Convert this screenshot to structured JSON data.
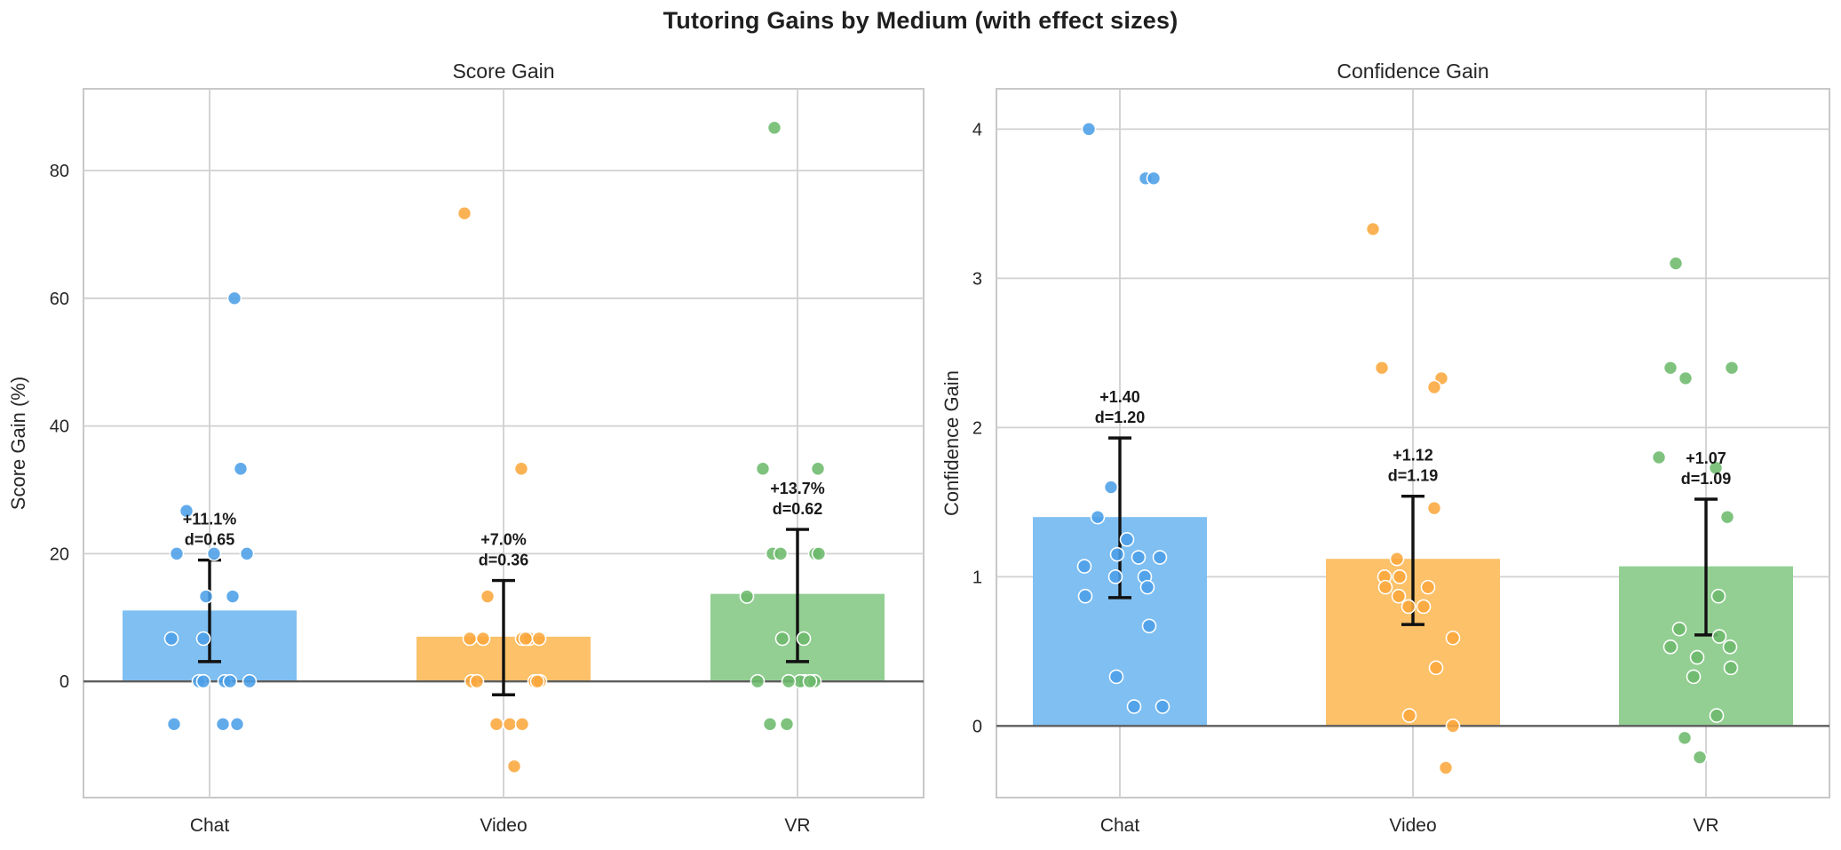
{
  "figure_title": "Tutoring Gains by Medium (with effect sizes)",
  "colors": {
    "background": "#ffffff",
    "panel_border": "#c8c8c8",
    "gridline": "#d0d0d0",
    "zero_line": "#5e5e5e",
    "errorbar": "#111111",
    "text": "#262626",
    "annotation_text": "#1a1a1a",
    "series": [
      {
        "name": "Chat",
        "point": "#4C9FE8",
        "bar": "#7FBFF2"
      },
      {
        "name": "Video",
        "point": "#FAA73C",
        "bar": "#FCC169"
      },
      {
        "name": "VR",
        "point": "#6CBA6C",
        "bar": "#93CF93"
      }
    ]
  },
  "chart_data": [
    {
      "type": "bar",
      "title": "Score Gain",
      "ylabel": "Score Gain (%)",
      "categories": [
        "Chat",
        "Video",
        "VR"
      ],
      "ytick_labels": [
        "0",
        "20",
        "40",
        "60",
        "80"
      ],
      "ytick_values": [
        0,
        20,
        40,
        60,
        80
      ],
      "ylim": [
        -18.2,
        92.8
      ],
      "grid": true,
      "legend": "none",
      "groups": [
        {
          "category": "Chat",
          "bar_mean": 11.1,
          "mean_label": "+11.1%",
          "d_label": "d=0.65",
          "effect_size": 0.65,
          "ci": [
            3.1,
            19.0
          ],
          "points": [
            [
              28,
              60
            ],
            [
              35,
              33.3
            ],
            [
              -26,
              26.7
            ],
            [
              -37,
              20
            ],
            [
              5,
              20
            ],
            [
              42,
              20
            ],
            [
              -4,
              13.3
            ],
            [
              26,
              13.3
            ],
            [
              -43,
              6.7
            ],
            [
              -7,
              6.7
            ],
            [
              -12,
              0
            ],
            [
              -7,
              0
            ],
            [
              17,
              0
            ],
            [
              23,
              0
            ],
            [
              45,
              0
            ],
            [
              -40,
              -6.7
            ],
            [
              15,
              -6.7
            ],
            [
              31,
              -6.7
            ]
          ]
        },
        {
          "category": "Video",
          "bar_mean": 7.0,
          "mean_label": "+7.0%",
          "d_label": "d=0.36",
          "effect_size": 0.36,
          "ci": [
            -2.1,
            15.8
          ],
          "points": [
            [
              -44,
              73.3
            ],
            [
              20,
              33.3
            ],
            [
              -18,
              13.3
            ],
            [
              -38,
              6.7
            ],
            [
              -23,
              6.7
            ],
            [
              21,
              6.7
            ],
            [
              29,
              6.7
            ],
            [
              40,
              6.7
            ],
            [
              25,
              6.7
            ],
            [
              -36,
              0
            ],
            [
              35,
              0
            ],
            [
              41,
              0
            ],
            [
              -30,
              0
            ],
            [
              38,
              0
            ],
            [
              -8,
              -6.7
            ],
            [
              7,
              -6.7
            ],
            [
              21,
              -6.7
            ],
            [
              12,
              -13.3
            ]
          ]
        },
        {
          "category": "VR",
          "bar_mean": 13.7,
          "mean_label": "+13.7%",
          "d_label": "d=0.62",
          "effect_size": 0.62,
          "ci": [
            3.1,
            23.8
          ],
          "points": [
            [
              -26,
              86.7
            ],
            [
              -39,
              33.3
            ],
            [
              23,
              33.3
            ],
            [
              -28,
              20
            ],
            [
              -19,
              20
            ],
            [
              20,
              20
            ],
            [
              24,
              20
            ],
            [
              -57,
              13.3
            ],
            [
              -17,
              6.7
            ],
            [
              7,
              6.7
            ],
            [
              -45,
              0
            ],
            [
              8,
              0
            ],
            [
              19,
              0
            ],
            [
              3,
              0
            ],
            [
              -10,
              0
            ],
            [
              14,
              0
            ],
            [
              -31,
              -6.7
            ],
            [
              -12,
              -6.7
            ]
          ]
        }
      ]
    },
    {
      "type": "bar",
      "title": "Confidence Gain",
      "ylabel": "Confidence Gain",
      "categories": [
        "Chat",
        "Video",
        "VR"
      ],
      "ytick_labels": [
        "0",
        "1",
        "2",
        "3",
        "4"
      ],
      "ytick_values": [
        0,
        1,
        2,
        3,
        4
      ],
      "ylim": [
        -0.48,
        4.27
      ],
      "grid": true,
      "legend": "none",
      "groups": [
        {
          "category": "Chat",
          "bar_mean": 1.4,
          "mean_label": "+1.40",
          "d_label": "d=1.20",
          "effect_size": 1.2,
          "ci": [
            0.86,
            1.93
          ],
          "points": [
            [
              -35,
              4.0
            ],
            [
              29,
              3.67
            ],
            [
              38,
              3.67
            ],
            [
              -10,
              1.6
            ],
            [
              -25,
              1.4
            ],
            [
              8,
              1.25
            ],
            [
              -3,
              1.15
            ],
            [
              21,
              1.13
            ],
            [
              45,
              1.13
            ],
            [
              -40,
              1.07
            ],
            [
              -5,
              1.0
            ],
            [
              28,
              1.0
            ],
            [
              31,
              0.93
            ],
            [
              -39,
              0.87
            ],
            [
              33,
              0.67
            ],
            [
              -4,
              0.33
            ],
            [
              16,
              0.13
            ],
            [
              48,
              0.13
            ]
          ]
        },
        {
          "category": "Video",
          "bar_mean": 1.12,
          "mean_label": "+1.12",
          "d_label": "d=1.19",
          "effect_size": 1.19,
          "ci": [
            0.68,
            1.54
          ],
          "points": [
            [
              -45,
              3.33
            ],
            [
              -35,
              2.4
            ],
            [
              32,
              2.33
            ],
            [
              24,
              2.27
            ],
            [
              24,
              1.46
            ],
            [
              -18,
              1.12
            ],
            [
              -32,
              1.0
            ],
            [
              -15,
              1.0
            ],
            [
              -31,
              0.93
            ],
            [
              17,
              0.93
            ],
            [
              -16,
              0.87
            ],
            [
              -5,
              0.8
            ],
            [
              12,
              0.8
            ],
            [
              45,
              0.59
            ],
            [
              26,
              0.39
            ],
            [
              -4,
              0.07
            ],
            [
              45,
              0.0
            ],
            [
              37,
              -0.28
            ]
          ]
        },
        {
          "category": "VR",
          "bar_mean": 1.07,
          "mean_label": "+1.07",
          "d_label": "d=1.09",
          "effect_size": 1.09,
          "ci": [
            0.61,
            1.52
          ],
          "points": [
            [
              -34,
              3.1
            ],
            [
              -40,
              2.4
            ],
            [
              29,
              2.4
            ],
            [
              -23,
              2.33
            ],
            [
              -53,
              1.8
            ],
            [
              11,
              1.73
            ],
            [
              24,
              1.4
            ],
            [
              14,
              0.87
            ],
            [
              -30,
              0.65
            ],
            [
              15,
              0.6
            ],
            [
              -40,
              0.53
            ],
            [
              27,
              0.53
            ],
            [
              -10,
              0.46
            ],
            [
              28,
              0.39
            ],
            [
              -14,
              0.33
            ],
            [
              12,
              0.07
            ],
            [
              -24,
              -0.08
            ],
            [
              -7,
              -0.21
            ]
          ]
        }
      ]
    }
  ]
}
